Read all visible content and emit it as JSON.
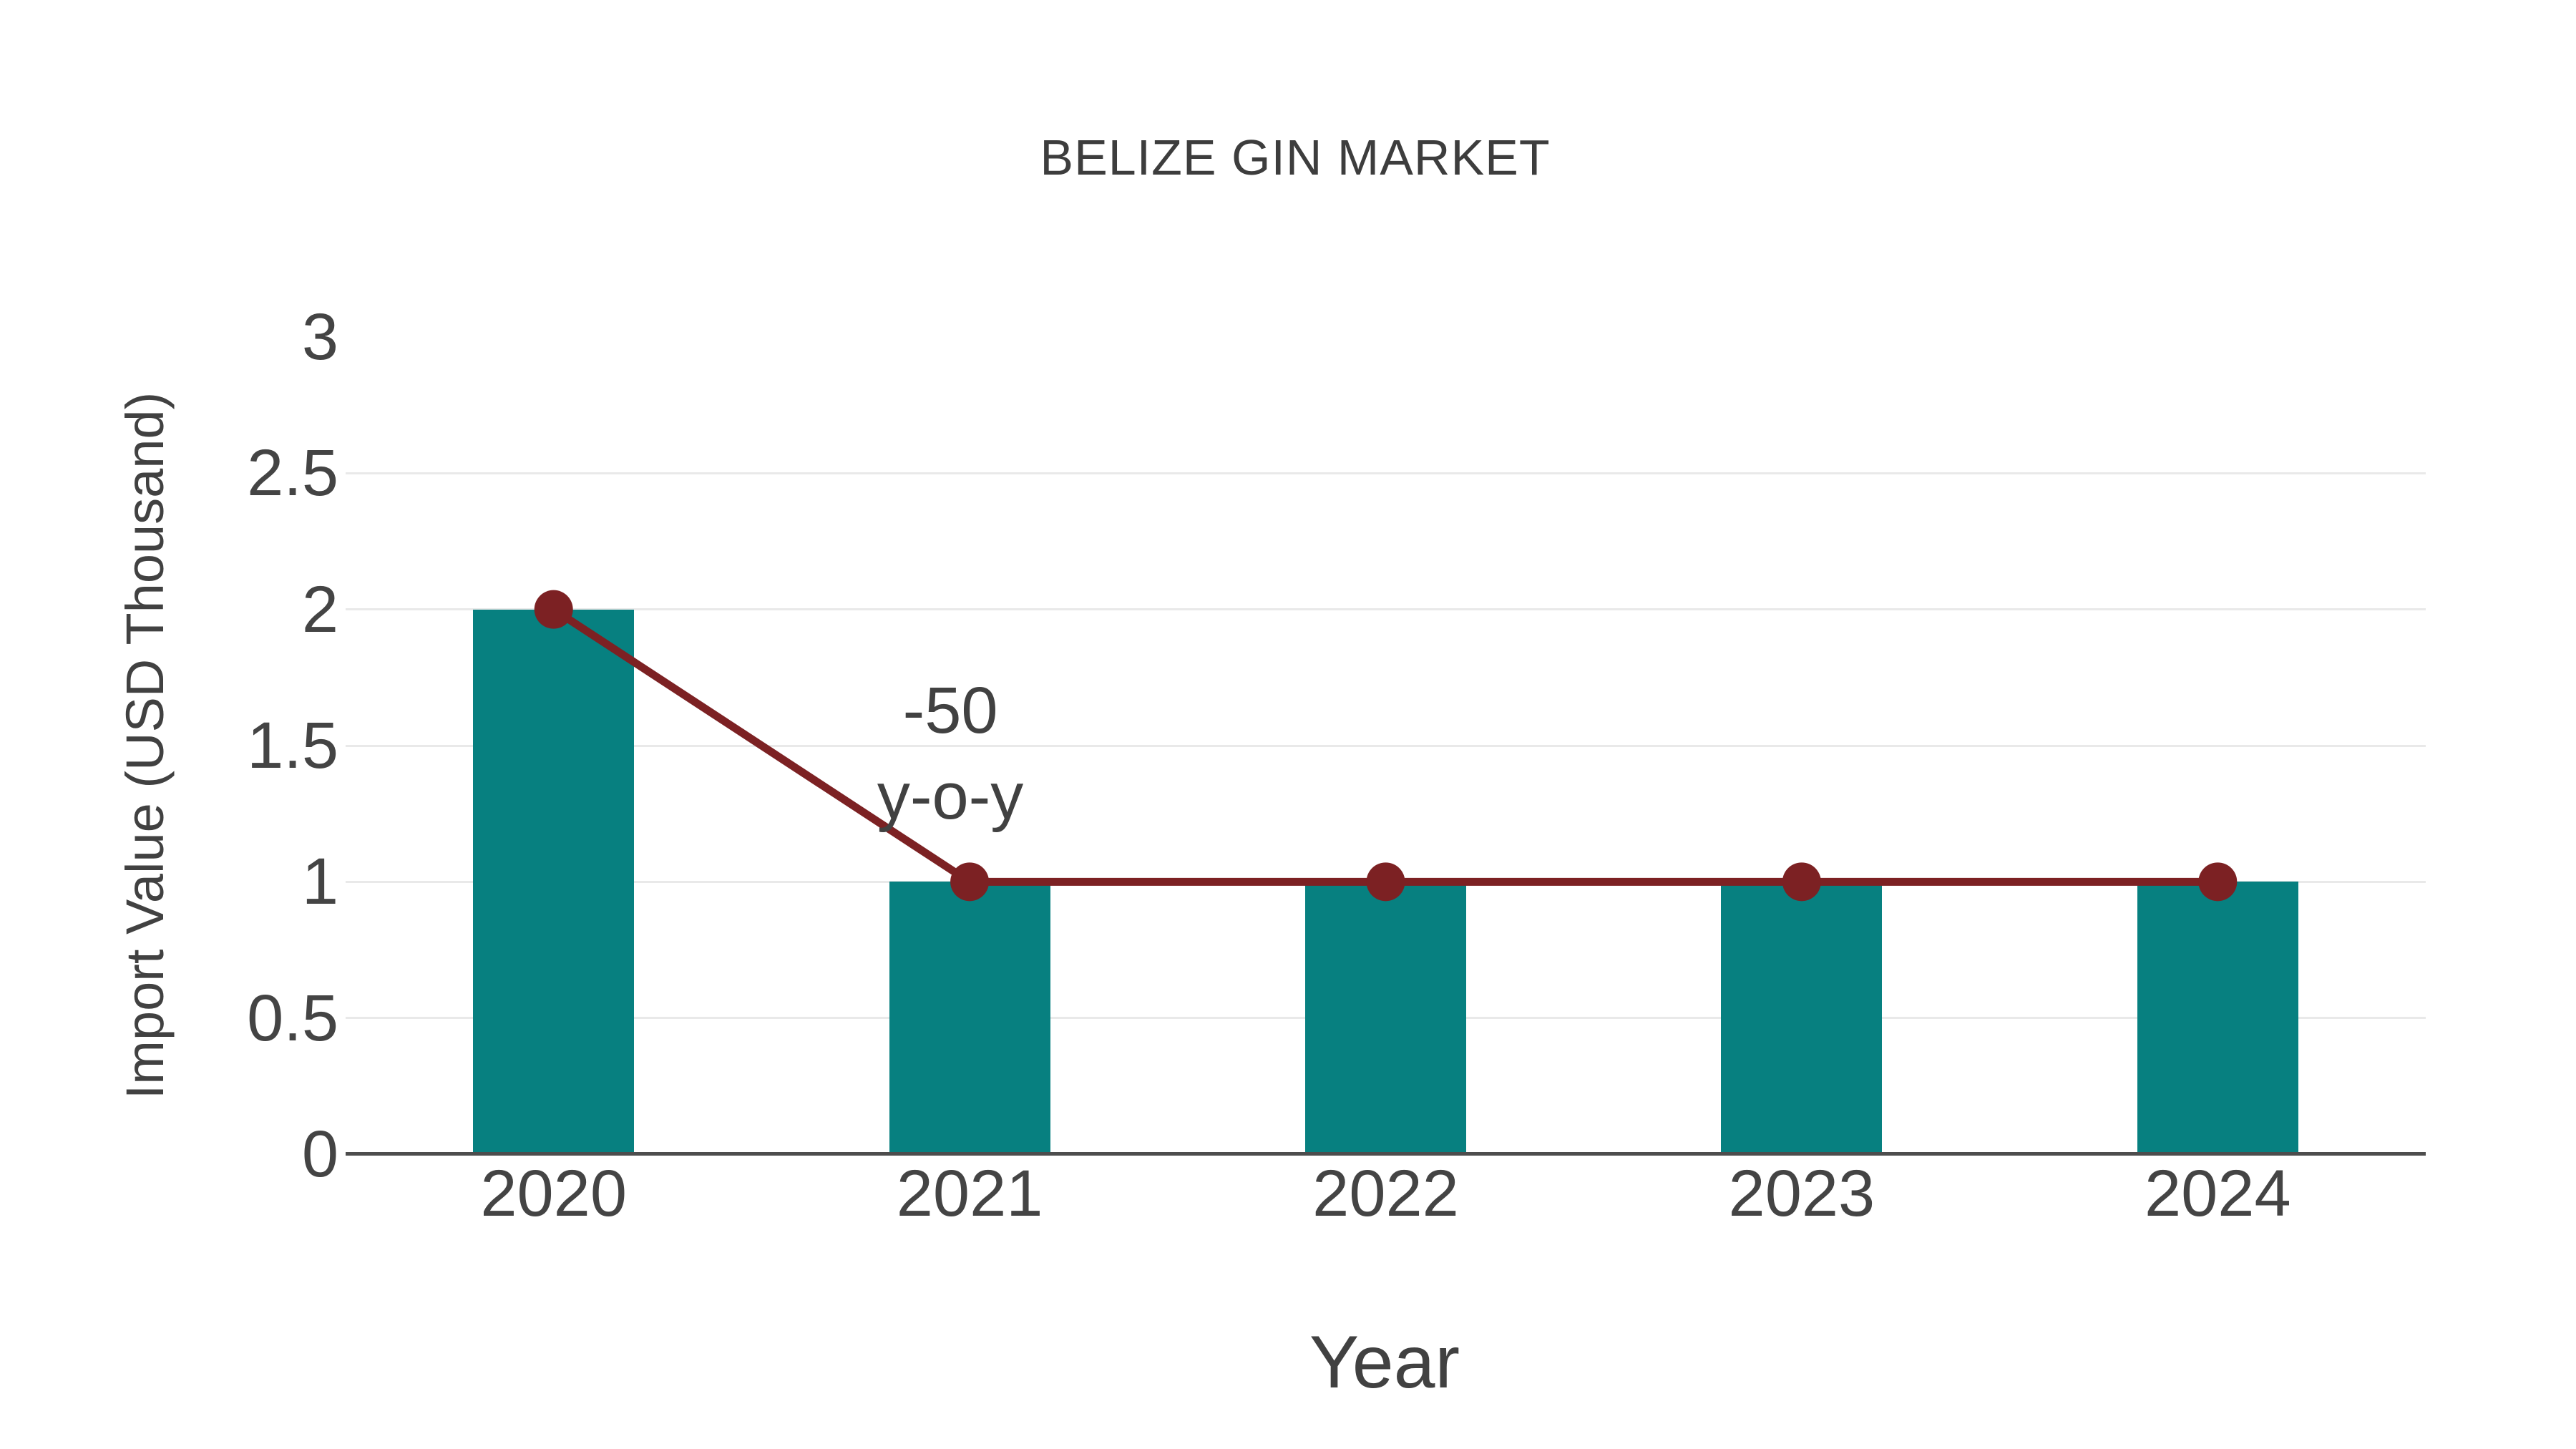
{
  "figure": {
    "title": "BELIZE GIN MARKET"
  },
  "chart_data": {
    "type": "bar",
    "title": "BELIZE GIN MARKET",
    "xlabel": "Year",
    "ylabel": "Import Value (USD Thousand)",
    "categories": [
      "2020",
      "2021",
      "2022",
      "2023",
      "2024"
    ],
    "series": [
      {
        "name": "Import Value bars",
        "type": "bar",
        "color": "#078080",
        "values": [
          2,
          1,
          1,
          1,
          1
        ]
      },
      {
        "name": "Import Value trend line",
        "type": "line",
        "color": "#7C2123",
        "marker": "circle",
        "values": [
          2,
          1,
          1,
          1,
          1
        ]
      }
    ],
    "ylim": [
      0,
      3
    ],
    "yticks": [
      0,
      0.5,
      1,
      1.5,
      2,
      2.5,
      3
    ],
    "grid": true,
    "legend_position": "none",
    "annotation": {
      "lines": [
        "-50",
        "y-o-y"
      ],
      "anchor_category": "2021"
    }
  },
  "colors": {
    "background": "#ffffff",
    "bar_teal": "#078080",
    "line_dark_red": "#7C2123",
    "gridline": "#e9e9e9",
    "axis_line": "#4d4d4d",
    "text": "#414141"
  }
}
